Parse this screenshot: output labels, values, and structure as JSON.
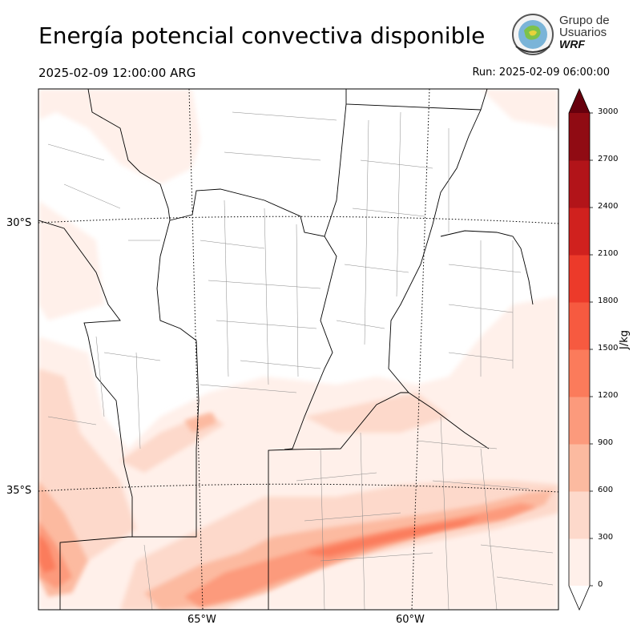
{
  "title": "Energía potencial convectiva disponible",
  "valid_time": "2025-02-09 12:00:00 ARG",
  "run_time": "Run: 2025-02-09 06:00:00",
  "logo": {
    "line1": "Grupo de",
    "line2": "Usuarios",
    "line3": "WRF"
  },
  "latitude_labels": [
    "30°S",
    "35°S"
  ],
  "longitude_labels": [
    "65°W",
    "60°W"
  ],
  "colorbar": {
    "unit": "J/kg",
    "ticks": [
      "0",
      "300",
      "600",
      "900",
      "1200",
      "1500",
      "1800",
      "2100",
      "2400",
      "2700",
      "3000"
    ],
    "colors": [
      "#fff0ea",
      "#fdd9cb",
      "#fcbaa0",
      "#fc9a7c",
      "#fb7b5b",
      "#f65a40",
      "#ec3a2a",
      "#d0211e",
      "#b21419",
      "#900b13"
    ],
    "extend_max_color": "#67000d",
    "extend_min_color": "#ffffff"
  },
  "colors": {
    "border": "#000000",
    "department_lines": "#888888",
    "graticule": "#000000"
  }
}
